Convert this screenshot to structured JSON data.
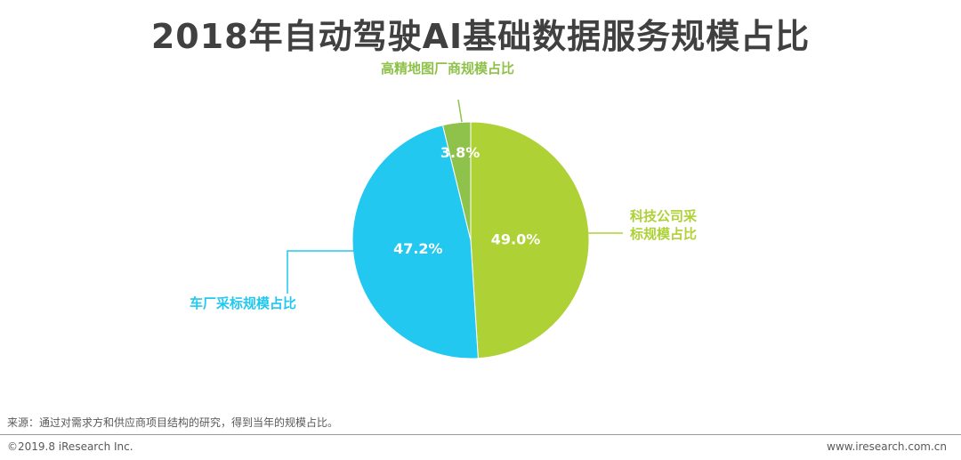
{
  "title": "2018年自动驾驶AI基础数据服务规模占比",
  "footer": {
    "source_note": "来源：通过对需求方和供应商项目结构的研究，得到当年的规模占比。",
    "copyright": "©2019.8 iResearch Inc.",
    "website": "www.iresearch.com.cn"
  },
  "chart_data": {
    "type": "pie",
    "title": "2018年自动驾驶AI基础数据服务规模占比",
    "slices": [
      {
        "label": "科技公司采标规模占比",
        "label_lines": [
          "科技公司采",
          "标规模占比"
        ],
        "value": 49.0,
        "display": "49.0%",
        "color": "#aed136"
      },
      {
        "label": "车厂采标规模占比",
        "label_lines": [
          "车厂采标规模占比"
        ],
        "value": 47.2,
        "display": "47.2%",
        "color": "#22c8ef"
      },
      {
        "label": "高精地图厂商规模占比",
        "label_lines": [
          "高精地图厂商规模占比"
        ],
        "value": 3.8,
        "display": "3.8%",
        "color": "#8fc24a"
      }
    ],
    "start_angle_deg": 0,
    "direction": "clockwise"
  }
}
